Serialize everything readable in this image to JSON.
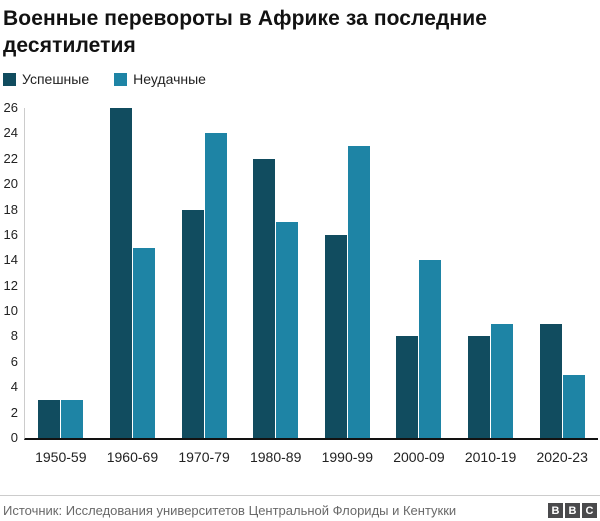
{
  "title": "Военные перевороты в Африке за последние десятилетия",
  "legend": {
    "items": [
      {
        "label": "Успешные",
        "color": "#114C5F"
      },
      {
        "label": "Неудачные",
        "color": "#1E84A5"
      }
    ]
  },
  "footer": {
    "source": "Источник: Исследования университетов Центральной Флориды и Кентукки",
    "logo_letters": [
      "B",
      "B",
      "C"
    ]
  },
  "colors": {
    "successful": "#114C5F",
    "failed": "#1E84A5",
    "axis_line": "#121212",
    "grid_line": "#cccccc",
    "tick_text": "#222222",
    "source_text": "#696969"
  },
  "chart_data": {
    "type": "bar",
    "title": "Военные перевороты в Африке за последние десятилетия",
    "categories": [
      "1950-59",
      "1960-69",
      "1970-79",
      "1980-89",
      "1990-99",
      "2000-09",
      "2010-19",
      "2020-23"
    ],
    "series": [
      {
        "name": "Успешные",
        "color": "#114C5F",
        "values": [
          3,
          26,
          18,
          22,
          16,
          8,
          8,
          9
        ]
      },
      {
        "name": "Неудачные",
        "color": "#1E84A5",
        "values": [
          3,
          15,
          24,
          17,
          23,
          14,
          9,
          5
        ]
      }
    ],
    "xlabel": "",
    "ylabel": "",
    "ylim": [
      0,
      26
    ],
    "ytick_step": 2,
    "grid": false,
    "legend_position": "top-left"
  }
}
